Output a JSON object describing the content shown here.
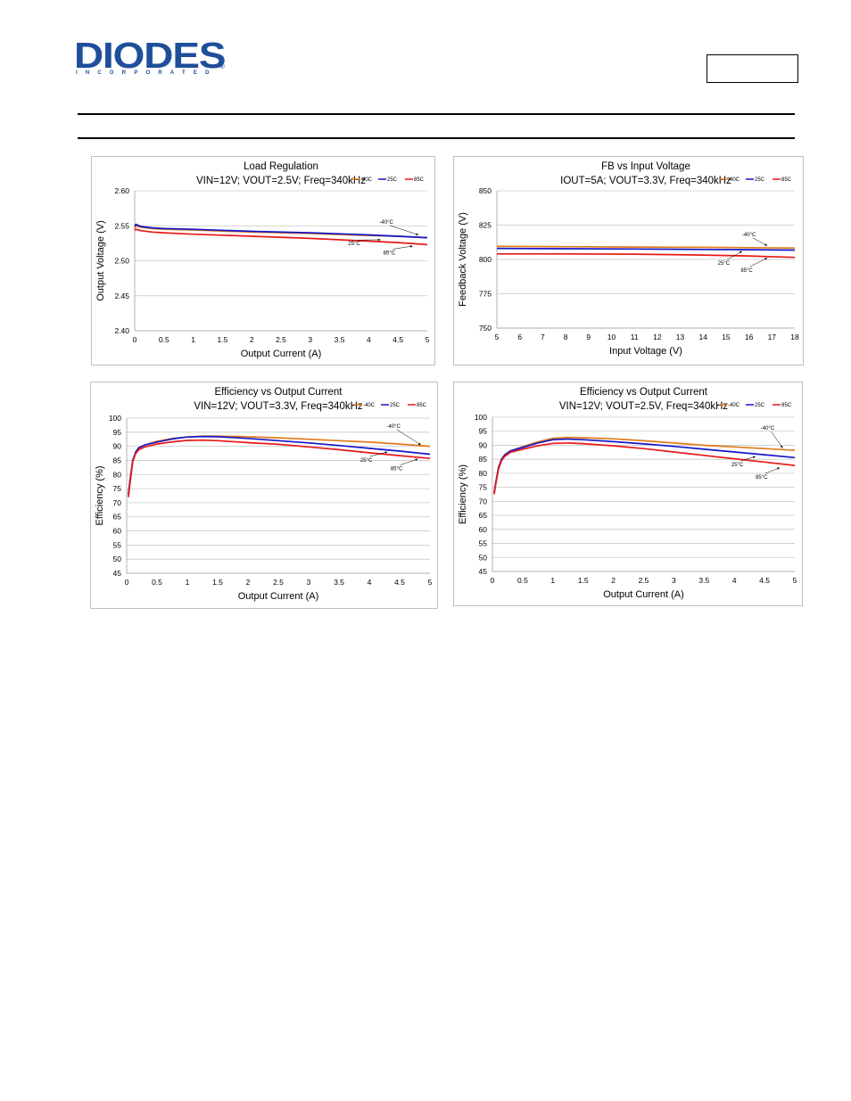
{
  "header": {
    "logo_text": "DIODES",
    "logo_subtext": "INCORPORATED",
    "logo_mark": "®"
  },
  "colors": {
    "neg40": "#e07b1a",
    "c25": "#1515c8",
    "c85": "#e81818",
    "grid": "#c8c8c8",
    "logo": "#1f4e9a"
  },
  "chart_data": [
    {
      "type": "line",
      "title": "Load Regulation",
      "subtitle": "VIN=12V; VOUT=2.5V; Freq=340kHz",
      "xlabel": "Output Current (A)",
      "ylabel": "Output Voltage (V)",
      "xlim": [
        0,
        5
      ],
      "ylim": [
        2.4,
        2.6
      ],
      "xticks": [
        0,
        0.5,
        1,
        1.5,
        2,
        2.5,
        3,
        3.5,
        4,
        4.5,
        5
      ],
      "xtick_labels": [
        "0",
        "0.5",
        "1",
        "1.5",
        "2",
        "2.5",
        "3",
        "3.5",
        "4",
        "4.5",
        "5"
      ],
      "yticks": [
        2.4,
        2.45,
        2.5,
        2.55,
        2.6
      ],
      "ytick_labels": [
        "2.40",
        "2.45",
        "2.50",
        "2.55",
        "2.60"
      ],
      "grid": "horizontal",
      "legend": [
        "-40C",
        "25C",
        "85C"
      ],
      "legend_position": "top-right",
      "series": [
        {
          "name": "-40C",
          "color": "#e07b1a",
          "x": [
            0,
            0.02,
            0.1,
            0.3,
            0.5,
            1,
            2,
            3,
            4,
            4.5,
            5
          ],
          "y": [
            2.546,
            2.55,
            2.548,
            2.546,
            2.545,
            2.544,
            2.541,
            2.539,
            2.536,
            2.535,
            2.533
          ]
        },
        {
          "name": "25C",
          "color": "#1515c8",
          "x": [
            0,
            0.02,
            0.1,
            0.3,
            0.5,
            1,
            2,
            3,
            4,
            4.5,
            5
          ],
          "y": [
            2.549,
            2.552,
            2.549,
            2.547,
            2.546,
            2.545,
            2.542,
            2.54,
            2.537,
            2.535,
            2.533
          ]
        },
        {
          "name": "85C",
          "color": "#e81818",
          "x": [
            0,
            0.02,
            0.1,
            0.3,
            0.5,
            1,
            2,
            3,
            4,
            4.5,
            5
          ],
          "y": [
            2.543,
            2.545,
            2.543,
            2.541,
            2.54,
            2.538,
            2.535,
            2.532,
            2.528,
            2.526,
            2.523
          ]
        }
      ],
      "annotations": [
        {
          "text": "-40°C",
          "x": 4.3,
          "y": 2.553,
          "ax": 4.85,
          "ay": 2.537
        },
        {
          "text": "25°C",
          "x": 3.75,
          "y": 2.522,
          "ax": 4.2,
          "ay": 2.53
        },
        {
          "text": "85°C",
          "x": 4.35,
          "y": 2.509,
          "ax": 4.75,
          "ay": 2.521
        }
      ]
    },
    {
      "type": "line",
      "title": "FB vs Input Voltage",
      "subtitle": "IOUT=5A; VOUT=3.3V, Freq=340kHz",
      "xlabel": "Input Voltage (V)",
      "ylabel": "Feedback Voltage (V)",
      "xlim": [
        5,
        18
      ],
      "ylim": [
        750,
        850
      ],
      "xticks": [
        5,
        6,
        7,
        8,
        9,
        10,
        11,
        12,
        13,
        14,
        15,
        16,
        17,
        18
      ],
      "xtick_labels": [
        "5",
        "6",
        "7",
        "8",
        "9",
        "10",
        "11",
        "12",
        "13",
        "14",
        "15",
        "16",
        "17",
        "18"
      ],
      "yticks": [
        750,
        775,
        800,
        825,
        850
      ],
      "ytick_labels": [
        "750",
        "775",
        "800",
        "825",
        "850"
      ],
      "grid": "horizontal",
      "legend": [
        "-40C",
        "25C",
        "85C"
      ],
      "legend_position": "top-right",
      "series": [
        {
          "name": "-40C",
          "color": "#e07b1a",
          "x": [
            5,
            8,
            11,
            14,
            16,
            18
          ],
          "y": [
            809.5,
            809.3,
            809.0,
            808.8,
            808.6,
            808.3
          ]
        },
        {
          "name": "25C",
          "color": "#1515c8",
          "x": [
            5,
            8,
            11,
            14,
            16,
            18
          ],
          "y": [
            808,
            807.8,
            807.6,
            807.3,
            807.1,
            806.8
          ]
        },
        {
          "name": "85C",
          "color": "#e81818",
          "x": [
            5,
            8,
            11,
            14,
            16,
            18
          ],
          "y": [
            804,
            804,
            803.8,
            803.2,
            802.5,
            801.5
          ]
        }
      ],
      "annotations": [
        {
          "text": "-40°C",
          "x": 16.0,
          "y": 817,
          "ax": 16.8,
          "ay": 810
        },
        {
          "text": "25°C",
          "x": 14.9,
          "y": 796,
          "ax": 15.7,
          "ay": 806
        },
        {
          "text": "85°C",
          "x": 15.9,
          "y": 791,
          "ax": 16.8,
          "ay": 801
        }
      ]
    },
    {
      "type": "line",
      "title": "Efficiency vs Output Current",
      "subtitle": "VIN=12V; VOUT=3.3V, Freq=340kHz",
      "xlabel": "Output Current (A)",
      "ylabel": "Efficiency (%)",
      "xlim": [
        0,
        5
      ],
      "ylim": [
        45,
        100
      ],
      "xticks": [
        0,
        0.5,
        1,
        1.5,
        2,
        2.5,
        3,
        3.5,
        4,
        4.5,
        5
      ],
      "xtick_labels": [
        "0",
        "0.5",
        "1",
        "1.5",
        "2",
        "2.5",
        "3",
        "3.5",
        "4",
        "4.5",
        "5"
      ],
      "yticks": [
        45,
        50,
        55,
        60,
        65,
        70,
        75,
        80,
        85,
        90,
        95,
        100
      ],
      "ytick_labels": [
        "45",
        "50",
        "55",
        "60",
        "65",
        "70",
        "75",
        "80",
        "85",
        "90",
        "95",
        "100"
      ],
      "grid": "horizontal",
      "legend": [
        "-40C",
        "25C",
        "85C"
      ],
      "legend_position": "top-right",
      "series": [
        {
          "name": "-40C",
          "color": "#e07b1a",
          "x": [
            0.03,
            0.05,
            0.1,
            0.15,
            0.2,
            0.3,
            0.5,
            0.75,
            1,
            1.25,
            1.5,
            2,
            2.5,
            3,
            3.5,
            4,
            4.5,
            5
          ],
          "y": [
            73,
            77,
            85,
            88,
            89.5,
            90.5,
            91.8,
            92.8,
            93.3,
            93.6,
            93.6,
            93.4,
            93.0,
            92.5,
            92.0,
            91.5,
            90.8,
            90.0
          ]
        },
        {
          "name": "25C",
          "color": "#1515c8",
          "x": [
            0.03,
            0.05,
            0.1,
            0.15,
            0.2,
            0.3,
            0.5,
            0.75,
            1,
            1.25,
            1.5,
            2,
            2.5,
            3,
            3.5,
            4,
            4.5,
            5
          ],
          "y": [
            73,
            77,
            85,
            88,
            89.5,
            90.5,
            91.5,
            92.6,
            93.3,
            93.5,
            93.4,
            92.8,
            92.0,
            91.2,
            90.3,
            89.3,
            88.3,
            87.2
          ]
        },
        {
          "name": "85C",
          "color": "#e81818",
          "x": [
            0.03,
            0.05,
            0.1,
            0.15,
            0.2,
            0.3,
            0.5,
            0.75,
            1,
            1.25,
            1.5,
            2,
            2.5,
            3,
            3.5,
            4,
            4.5,
            5
          ],
          "y": [
            72,
            76,
            84.5,
            87.5,
            88.8,
            89.8,
            90.8,
            91.6,
            92.1,
            92.2,
            92.0,
            91.3,
            90.7,
            89.8,
            88.8,
            87.7,
            86.7,
            85.7
          ]
        }
      ],
      "annotations": [
        {
          "text": "-40°C",
          "x": 4.4,
          "y": 96.5,
          "ax": 4.85,
          "ay": 90.5
        },
        {
          "text": "25°C",
          "x": 3.95,
          "y": 84.5,
          "ax": 4.3,
          "ay": 88.0
        },
        {
          "text": "85°C",
          "x": 4.45,
          "y": 81.5,
          "ax": 4.8,
          "ay": 85.5
        }
      ]
    },
    {
      "type": "line",
      "title": "Efficiency vs Output Current",
      "subtitle": "VIN=12V; VOUT=2.5V, Freq=340kHz",
      "xlabel": "Output Current (A)",
      "ylabel": "Efficiency (%)",
      "xlim": [
        0,
        5
      ],
      "ylim": [
        45,
        100
      ],
      "xticks": [
        0,
        0.5,
        1,
        1.5,
        2,
        2.5,
        3,
        3.5,
        4,
        4.5,
        5
      ],
      "xtick_labels": [
        "0",
        "0.5",
        "1",
        "1.5",
        "2",
        "2.5",
        "3",
        "3.5",
        "4",
        "4.5",
        "5"
      ],
      "yticks": [
        45,
        50,
        55,
        60,
        65,
        70,
        75,
        80,
        85,
        90,
        95,
        100
      ],
      "ytick_labels": [
        "45",
        "50",
        "55",
        "60",
        "65",
        "70",
        "75",
        "80",
        "85",
        "90",
        "95",
        "100"
      ],
      "grid": "horizontal",
      "legend": [
        "-40C",
        "25C",
        "85C"
      ],
      "legend_position": "top-right",
      "series": [
        {
          "name": "-40C",
          "color": "#e07b1a",
          "x": [
            0.03,
            0.05,
            0.1,
            0.15,
            0.2,
            0.3,
            0.5,
            0.75,
            1,
            1.25,
            1.5,
            2,
            2.5,
            3,
            3.5,
            4,
            4.5,
            5
          ],
          "y": [
            73,
            76,
            82,
            85,
            86.5,
            88,
            89.5,
            91.2,
            92.5,
            92.8,
            92.7,
            92.3,
            91.6,
            90.8,
            90.0,
            89.4,
            88.8,
            88.2
          ]
        },
        {
          "name": "25C",
          "color": "#1515c8",
          "x": [
            0.03,
            0.05,
            0.1,
            0.15,
            0.2,
            0.3,
            0.5,
            0.75,
            1,
            1.25,
            1.5,
            2,
            2.5,
            3,
            3.5,
            4,
            4.5,
            5
          ],
          "y": [
            73,
            76,
            82,
            85,
            86.5,
            88,
            89.2,
            90.8,
            92.0,
            92.2,
            92.0,
            91.3,
            90.5,
            89.6,
            88.6,
            87.6,
            86.6,
            85.6
          ]
        },
        {
          "name": "85C",
          "color": "#e81818",
          "x": [
            0.03,
            0.05,
            0.1,
            0.15,
            0.2,
            0.3,
            0.5,
            0.75,
            1,
            1.25,
            1.5,
            2,
            2.5,
            3,
            3.5,
            4,
            4.5,
            5
          ],
          "y": [
            72.5,
            75.5,
            81.5,
            84.5,
            86,
            87.5,
            88.6,
            89.8,
            90.7,
            90.8,
            90.6,
            89.8,
            88.8,
            87.6,
            86.4,
            85.2,
            84.0,
            82.8
          ]
        }
      ],
      "annotations": [
        {
          "text": "-40°C",
          "x": 4.55,
          "y": 95.5,
          "ax": 4.8,
          "ay": 89.0
        },
        {
          "text": "25°C",
          "x": 4.05,
          "y": 82.5,
          "ax": 4.35,
          "ay": 86.0
        },
        {
          "text": "85°C",
          "x": 4.45,
          "y": 78.0,
          "ax": 4.75,
          "ay": 82.0
        }
      ]
    }
  ]
}
